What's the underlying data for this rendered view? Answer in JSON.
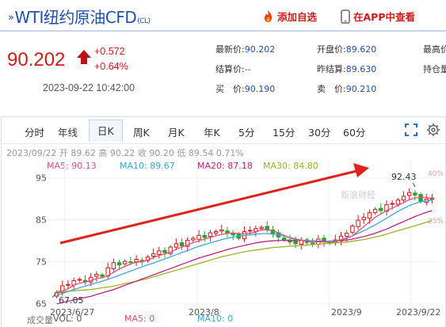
{
  "header": {
    "title": "WTI纽约原油CFD",
    "code": "(CL)",
    "add_watch": "添加自选",
    "open_app": "在APP中查看"
  },
  "price": {
    "last": "90.202",
    "change": "+0.572",
    "change_pct": "+0.64%",
    "datetime": "2023-09-22 10:42:00"
  },
  "quote": {
    "latest_label": "最新价:",
    "latest": "90.202",
    "settle_label": "结算价:",
    "settle": "--",
    "bid_label": "买　价:",
    "bid": "90.190",
    "open_label": "开盘价:",
    "open": "89.620",
    "prev_settle_label": "昨结算:",
    "prev_settle": "89.630",
    "ask_label": "卖　价:",
    "ask": "90.210",
    "high_label": "最高价",
    "oi_label": "持仓量"
  },
  "tabs": [
    "分时",
    "年线",
    "日K",
    "周K",
    "月K",
    "年K",
    "5分",
    "15分",
    "30分",
    "60分"
  ],
  "active_tab": "日K",
  "ohlc_line": {
    "date": "2023/09/22",
    "open_label": "开",
    "open": "89.62",
    "high_label": "高",
    "high": "90.22",
    "low_label": "收",
    "close": "90.20",
    "min_label": "低",
    "low": "89.54",
    "pct": "0.71%"
  },
  "ma": {
    "ma5": "MA5: 90.13",
    "ma10": "MA10: 89.67",
    "ma20": "MA20: 87.18",
    "ma30": "MA30: 84.80"
  },
  "volume": {
    "label": "成交量",
    "vol": "VOL: 0",
    "ma5": "MA5: 0",
    "ma10": "MA10: 0"
  },
  "watermark": "新浪财经",
  "colors": {
    "up": "#d11a1a",
    "down": "#2ca02c",
    "ma5": "#e0507a",
    "ma10": "#3aa8d8",
    "ma20": "#c02080",
    "ma30": "#a3b021",
    "accent": "#1f4fb3"
  },
  "chart_data": {
    "type": "candlestick",
    "x": [
      "2023/6/27",
      "2023/8",
      "2023/9",
      "2023/9/22"
    ],
    "yticks": [
      65,
      75,
      85,
      95
    ],
    "ylim": [
      64,
      97
    ],
    "pct_ticks": [
      "40%",
      "25%"
    ],
    "annotations": {
      "max": "92.43",
      "min": "67.05"
    },
    "closes": [
      67.7,
      69.3,
      69.6,
      70.5,
      70.8,
      70.2,
      71.3,
      72.0,
      71.5,
      73.6,
      74.8,
      74.3,
      75.1,
      74.9,
      75.6,
      75.3,
      76.1,
      76.9,
      77.6,
      77.2,
      78.5,
      79.3,
      78.8,
      80.1,
      80.6,
      81.3,
      80.8,
      81.9,
      82.2,
      82.6,
      81.8,
      81.4,
      80.6,
      82.2,
      82.5,
      82.9,
      83.2,
      82.7,
      81.8,
      80.9,
      80.2,
      79.7,
      79.3,
      80.1,
      79.6,
      79.2,
      80.4,
      79.8,
      79.5,
      80.2,
      81.1,
      81.8,
      83.5,
      84.9,
      85.6,
      86.7,
      87.5,
      87.2,
      88.6,
      88.9,
      89.7,
      90.6,
      91.5,
      90.9,
      89.4,
      89.9,
      90.2
    ],
    "ma5": [
      67.4,
      68.1,
      68.6,
      69.4,
      69.9,
      70.2,
      70.5,
      71.0,
      71.2,
      71.7,
      72.5,
      73.3,
      73.9,
      74.5,
      74.9,
      75.0,
      75.4,
      76.0,
      76.5,
      76.9,
      77.3,
      78.0,
      78.5,
      79.0,
      79.6,
      80.0,
      80.4,
      80.8,
      81.2,
      81.5,
      81.8,
      81.9,
      81.7,
      81.7,
      81.8,
      82.1,
      82.6,
      82.6,
      82.4,
      81.9,
      81.3,
      80.7,
      80.3,
      80.1,
      79.9,
      79.6,
      79.8,
      79.7,
      79.7,
      79.8,
      80.2,
      80.6,
      81.2,
      82.3,
      83.4,
      84.5,
      85.6,
      86.4,
      87.2,
      87.8,
      88.4,
      89.1,
      89.8,
      90.2,
      90.4,
      90.3,
      90.1
    ],
    "ma10": [
      67.0,
      67.5,
      67.9,
      68.4,
      68.8,
      69.2,
      69.6,
      70.0,
      70.4,
      70.8,
      71.3,
      71.8,
      72.3,
      72.8,
      73.3,
      73.8,
      74.3,
      74.7,
      75.2,
      75.7,
      76.2,
      76.7,
      77.2,
      77.7,
      78.2,
      78.7,
      79.1,
      79.5,
      79.9,
      80.3,
      80.6,
      80.9,
      81.1,
      81.3,
      81.4,
      81.6,
      81.7,
      81.7,
      81.6,
      81.4,
      81.1,
      80.8,
      80.5,
      80.2,
      80.0,
      79.9,
      79.8,
      79.8,
      79.9,
      80.0,
      80.3,
      80.7,
      81.2,
      81.8,
      82.4,
      83.1,
      83.8,
      84.6,
      85.4,
      86.2,
      87.0,
      87.7,
      88.4,
      88.9,
      89.3,
      89.5,
      89.7
    ],
    "ma20": [
      65.0,
      65.3,
      65.6,
      65.9,
      66.2,
      66.5,
      66.8,
      67.2,
      67.6,
      68.0,
      68.4,
      68.9,
      69.4,
      69.9,
      70.4,
      70.9,
      71.4,
      71.9,
      72.4,
      72.9,
      73.4,
      73.9,
      74.4,
      74.9,
      75.4,
      75.9,
      76.3,
      76.7,
      77.1,
      77.5,
      77.9,
      78.3,
      78.6,
      78.9,
      79.2,
      79.5,
      79.7,
      79.9,
      80.0,
      80.1,
      80.1,
      80.1,
      80.1,
      80.1,
      80.0,
      80.0,
      79.9,
      79.9,
      79.9,
      80.0,
      80.1,
      80.2,
      80.4,
      80.7,
      81.0,
      81.4,
      81.8,
      82.3,
      82.8,
      83.4,
      84.0,
      84.6,
      85.2,
      85.8,
      86.3,
      86.8,
      87.2
    ],
    "ma30": [
      68.0,
      68.0,
      68.0,
      68.1,
      68.2,
      68.3,
      68.4,
      68.6,
      68.8,
      69.0,
      69.2,
      69.5,
      69.8,
      70.1,
      70.4,
      70.7,
      71.0,
      71.4,
      71.8,
      72.2,
      72.6,
      73.0,
      73.4,
      73.8,
      74.2,
      74.6,
      75.0,
      75.4,
      75.8,
      76.2,
      76.5,
      76.8,
      77.1,
      77.4,
      77.6,
      77.8,
      78.0,
      78.2,
      78.4,
      78.5,
      78.6,
      78.7,
      78.8,
      78.9,
      79.0,
      79.1,
      79.2,
      79.3,
      79.4,
      79.5,
      79.6,
      79.7,
      79.9,
      80.1,
      80.3,
      80.6,
      80.9,
      81.2,
      81.6,
      82.0,
      82.4,
      82.8,
      83.2,
      83.6,
      84.0,
      84.4,
      84.8
    ]
  }
}
